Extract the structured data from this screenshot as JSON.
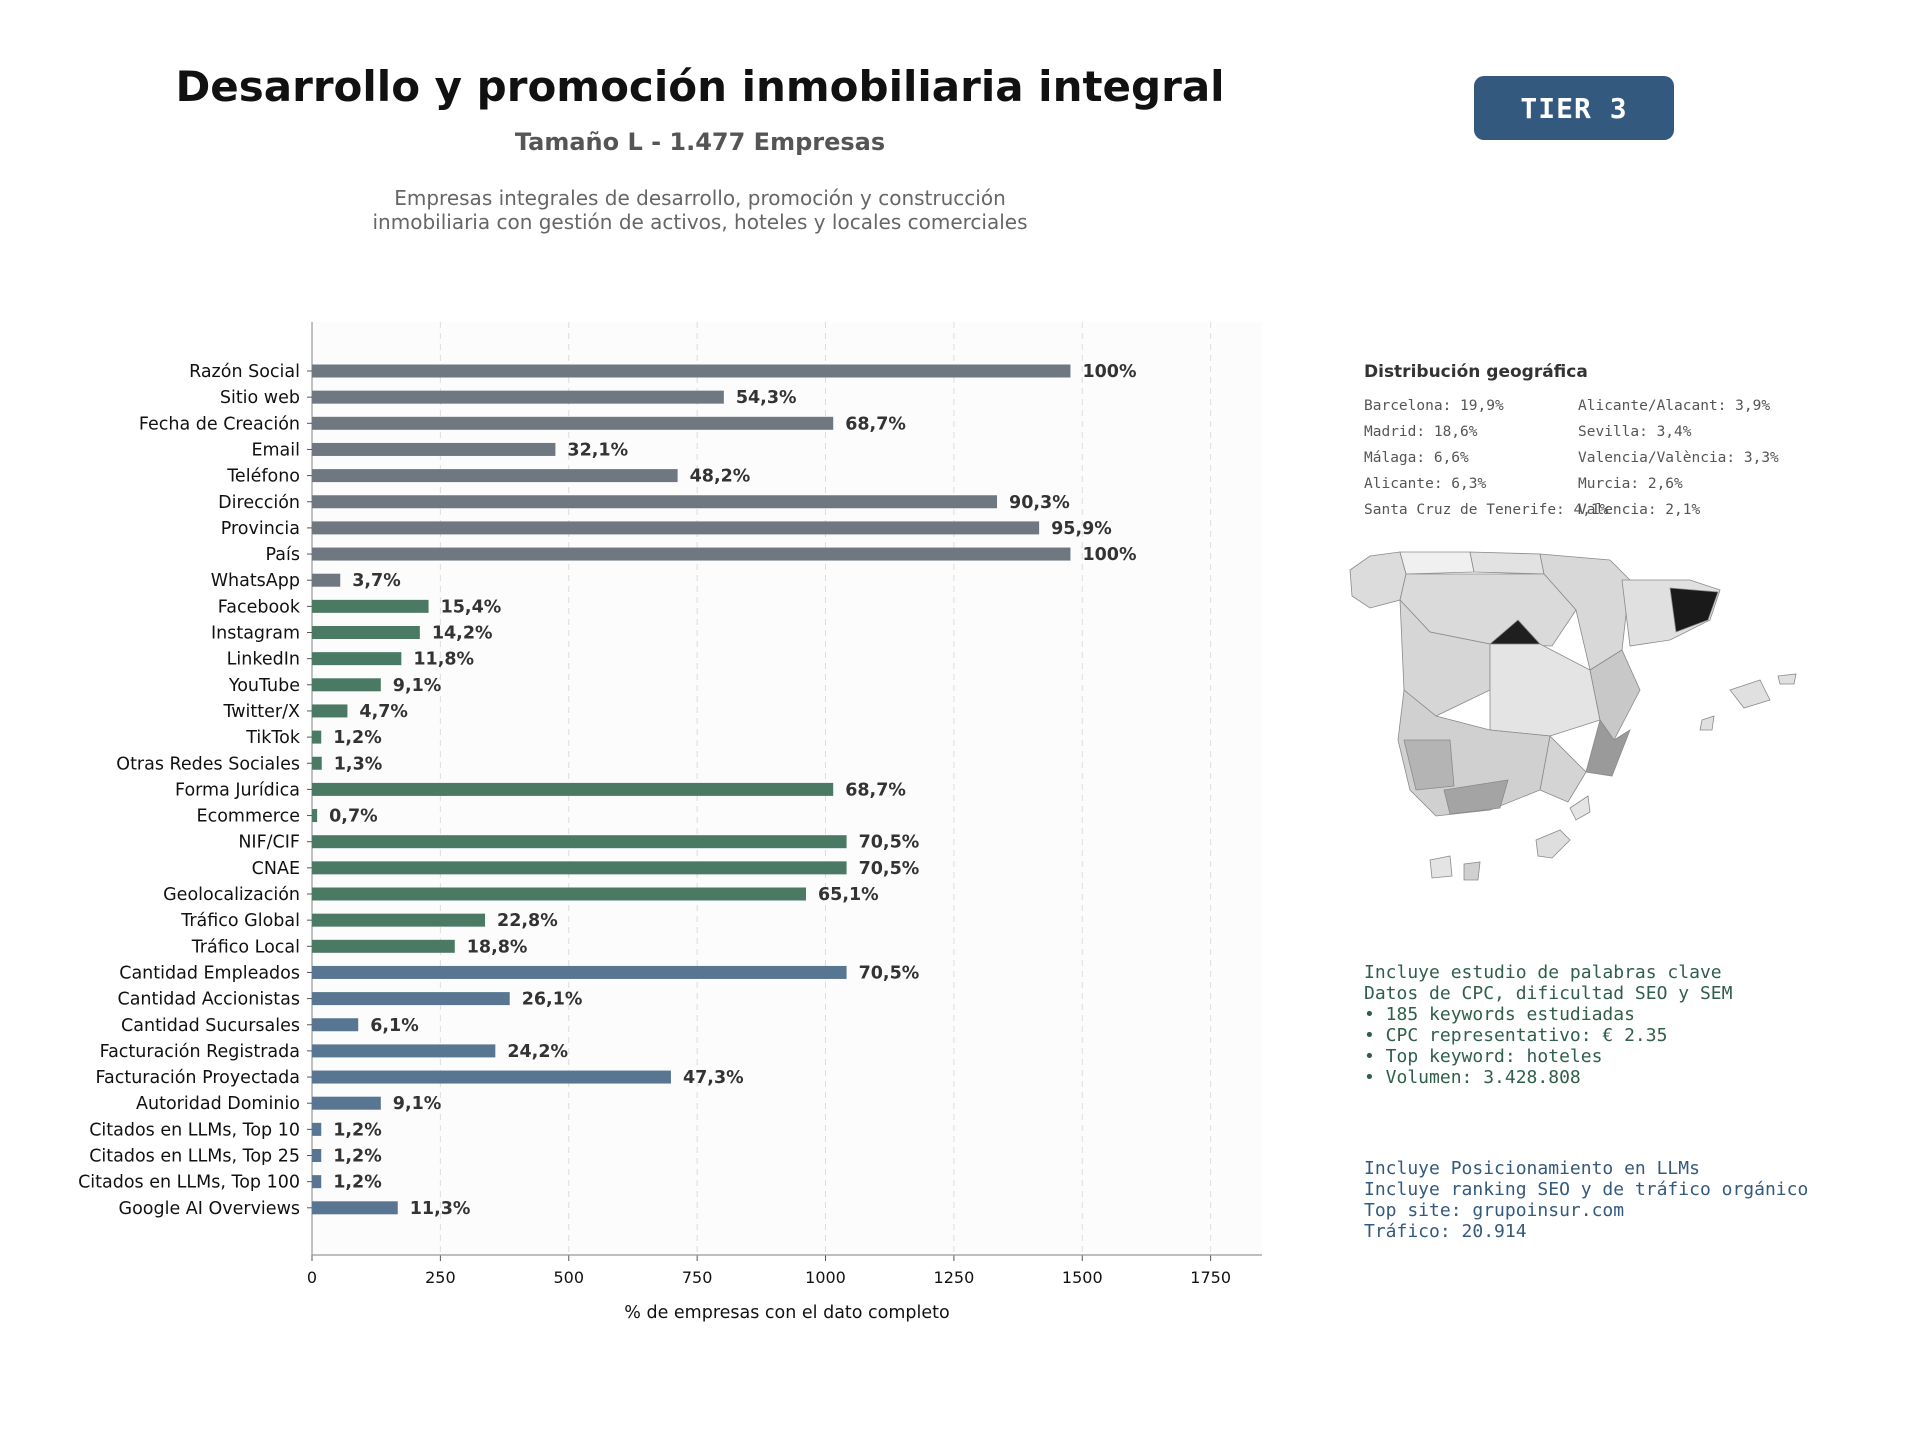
{
  "header": {
    "title": "Desarrollo y promoción inmobiliaria integral",
    "subtitle": "Tamaño L - 1.477 Empresas",
    "description": [
      "Empresas integrales de desarrollo, promoción y construcción",
      "inmobiliaria con gestión de activos, hoteles y locales comerciales"
    ],
    "tier": "TIER 3"
  },
  "colors": {
    "gray_bar": "#6f7880",
    "green_bar": "#4a7a64",
    "blue_bar": "#587592",
    "tier_bg": "#34597e"
  },
  "chart_data": {
    "type": "bar",
    "orientation": "horizontal",
    "xlabel": "% de empresas con el dato completo",
    "xlim": [
      0,
      1850
    ],
    "xticks": [
      0,
      250,
      500,
      750,
      1000,
      1250,
      1500,
      1750
    ],
    "grid": "vertical-dashed",
    "total": 1477,
    "categories": [
      "Razón Social",
      "Sitio web",
      "Fecha de Creación",
      "Email",
      "Teléfono",
      "Dirección",
      "Provincia",
      "País",
      "WhatsApp",
      "Facebook",
      "Instagram",
      "LinkedIn",
      "YouTube",
      "Twitter/X",
      "TikTok",
      "Otras Redes Sociales",
      "Forma Jurídica",
      "Ecommerce",
      "NIF/CIF",
      "CNAE",
      "Geolocalización",
      "Tráfico Global",
      "Tráfico Local",
      "Cantidad Empleados",
      "Cantidad Accionistas",
      "Cantidad Sucursales",
      "Facturación Registrada",
      "Facturación Proyectada",
      "Autoridad Dominio",
      "Citados en LLMs, Top 10",
      "Citados en LLMs, Top 25",
      "Citados en LLMs, Top 100",
      "Google AI Overviews"
    ],
    "values": [
      1477,
      802,
      1015,
      474,
      712,
      1334,
      1416,
      1477,
      55,
      227,
      210,
      174,
      134,
      69,
      18,
      19,
      1015,
      10,
      1041,
      1041,
      962,
      337,
      278,
      1041,
      385,
      90,
      357,
      699,
      134,
      18,
      18,
      18,
      167
    ],
    "labels": [
      "100%",
      "54,3%",
      "68,7%",
      "32,1%",
      "48,2%",
      "90,3%",
      "95,9%",
      "100%",
      "3,7%",
      "15,4%",
      "14,2%",
      "11,8%",
      "9,1%",
      "4,7%",
      "1,2%",
      "1,3%",
      "68,7%",
      "0,7%",
      "70,5%",
      "70,5%",
      "65,1%",
      "22,8%",
      "18,8%",
      "70,5%",
      "26,1%",
      "6,1%",
      "24,2%",
      "47,3%",
      "9,1%",
      "1,2%",
      "1,2%",
      "1,2%",
      "11,3%"
    ],
    "groups": [
      "gray",
      "gray",
      "gray",
      "gray",
      "gray",
      "gray",
      "gray",
      "gray",
      "gray",
      "green",
      "green",
      "green",
      "green",
      "green",
      "green",
      "green",
      "green",
      "green",
      "green",
      "green",
      "green",
      "green",
      "green",
      "blue",
      "blue",
      "blue",
      "blue",
      "blue",
      "blue",
      "blue",
      "blue",
      "blue",
      "blue"
    ]
  },
  "geo": {
    "title": "Distribución geográfica",
    "items": [
      "Barcelona: 19,9%",
      "Madrid: 18,6%",
      "Málaga: 6,6%",
      "Alicante: 6,3%",
      "Santa Cruz de Tenerife: 4,1%",
      "Alicante/Alacant: 3,9%",
      "Sevilla: 3,4%",
      "Valencia/València: 3,3%",
      "Murcia: 2,6%",
      "Valencia: 2,1%"
    ]
  },
  "seo_info": {
    "lines": [
      "Incluye estudio de palabras clave",
      "Datos de CPC, dificultad SEO y SEM",
      "",
      "• 185 keywords estudiadas",
      "• CPC representativo: € 2.35",
      "• Top keyword: hoteles",
      "• Volumen: 3.428.808"
    ]
  },
  "llm_info": {
    "lines": [
      "Incluye Posicionamiento en LLMs",
      "Incluye ranking SEO y de tráfico orgánico",
      "",
      "Top site: grupoinsur.com",
      "Tráfico: 20.914"
    ]
  }
}
